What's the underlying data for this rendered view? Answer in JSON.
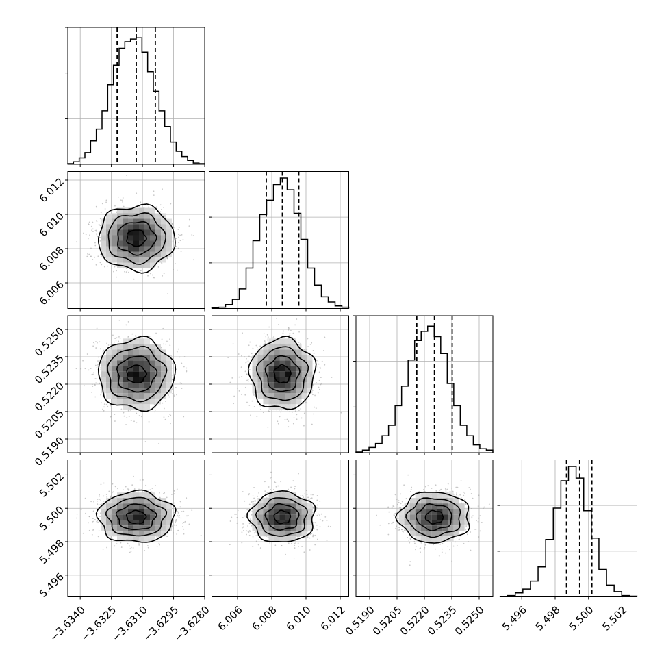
{
  "chart_data": {
    "type": "corner",
    "parameters": [
      {
        "range": [
          -3.6346,
          -3.628
        ],
        "quantiles": [
          -3.63222,
          -3.6313,
          -3.63038
        ],
        "ticks": [
          {
            "v": -3.634,
            "label": "−3.6340"
          },
          {
            "v": -3.6325,
            "label": "−3.6325"
          },
          {
            "v": -3.631,
            "label": "−3.6310"
          },
          {
            "v": -3.6295,
            "label": "−3.6295"
          },
          {
            "v": -3.628,
            "label": "−3.6280"
          }
        ],
        "hist": [
          0.005,
          0.02,
          0.05,
          0.09,
          0.18,
          0.27,
          0.41,
          0.61,
          0.76,
          0.89,
          0.94,
          0.96,
          0.97,
          0.86,
          0.71,
          0.56,
          0.41,
          0.29,
          0.17,
          0.1,
          0.06,
          0.03,
          0.01,
          0.005
        ]
      },
      {
        "range": [
          6.0045,
          6.0125
        ],
        "quantiles": [
          6.00768,
          6.00862,
          6.00958
        ],
        "ticks": [
          {
            "v": 6.006,
            "label": "6.006"
          },
          {
            "v": 6.008,
            "label": "6.008"
          },
          {
            "v": 6.01,
            "label": "6.010"
          },
          {
            "v": 6.012,
            "label": "6.012"
          }
        ],
        "hist": [
          0.005,
          0.01,
          0.03,
          0.07,
          0.15,
          0.31,
          0.52,
          0.72,
          0.83,
          0.95,
          1.0,
          0.91,
          0.73,
          0.53,
          0.31,
          0.18,
          0.09,
          0.05,
          0.02,
          0.01
        ]
      },
      {
        "range": [
          0.51825,
          0.52575
        ],
        "quantiles": [
          0.52158,
          0.52255,
          0.52352
        ],
        "ticks": [
          {
            "v": 0.519,
            "label": "0.5190"
          },
          {
            "v": 0.5205,
            "label": "0.5205"
          },
          {
            "v": 0.522,
            "label": "0.5220"
          },
          {
            "v": 0.5235,
            "label": "0.5235"
          },
          {
            "v": 0.525,
            "label": "0.5250"
          }
        ],
        "hist": [
          0.005,
          0.02,
          0.04,
          0.07,
          0.13,
          0.21,
          0.36,
          0.51,
          0.71,
          0.86,
          0.93,
          0.97,
          0.89,
          0.76,
          0.53,
          0.36,
          0.21,
          0.13,
          0.06,
          0.03,
          0.02
        ]
      },
      {
        "range": [
          5.4947,
          5.5029
        ],
        "quantiles": [
          5.49868,
          5.49947,
          5.5002
        ],
        "ticks": [
          {
            "v": 5.496,
            "label": "5.496"
          },
          {
            "v": 5.498,
            "label": "5.498"
          },
          {
            "v": 5.5,
            "label": "5.500"
          },
          {
            "v": 5.502,
            "label": "5.502"
          }
        ],
        "hist": [
          0.003,
          0.01,
          0.03,
          0.06,
          0.12,
          0.23,
          0.44,
          0.68,
          0.89,
          1.0,
          0.91,
          0.66,
          0.45,
          0.21,
          0.09,
          0.04,
          0.01,
          0.005
        ]
      }
    ],
    "contours": true,
    "scatter_points": true,
    "grid": true
  }
}
